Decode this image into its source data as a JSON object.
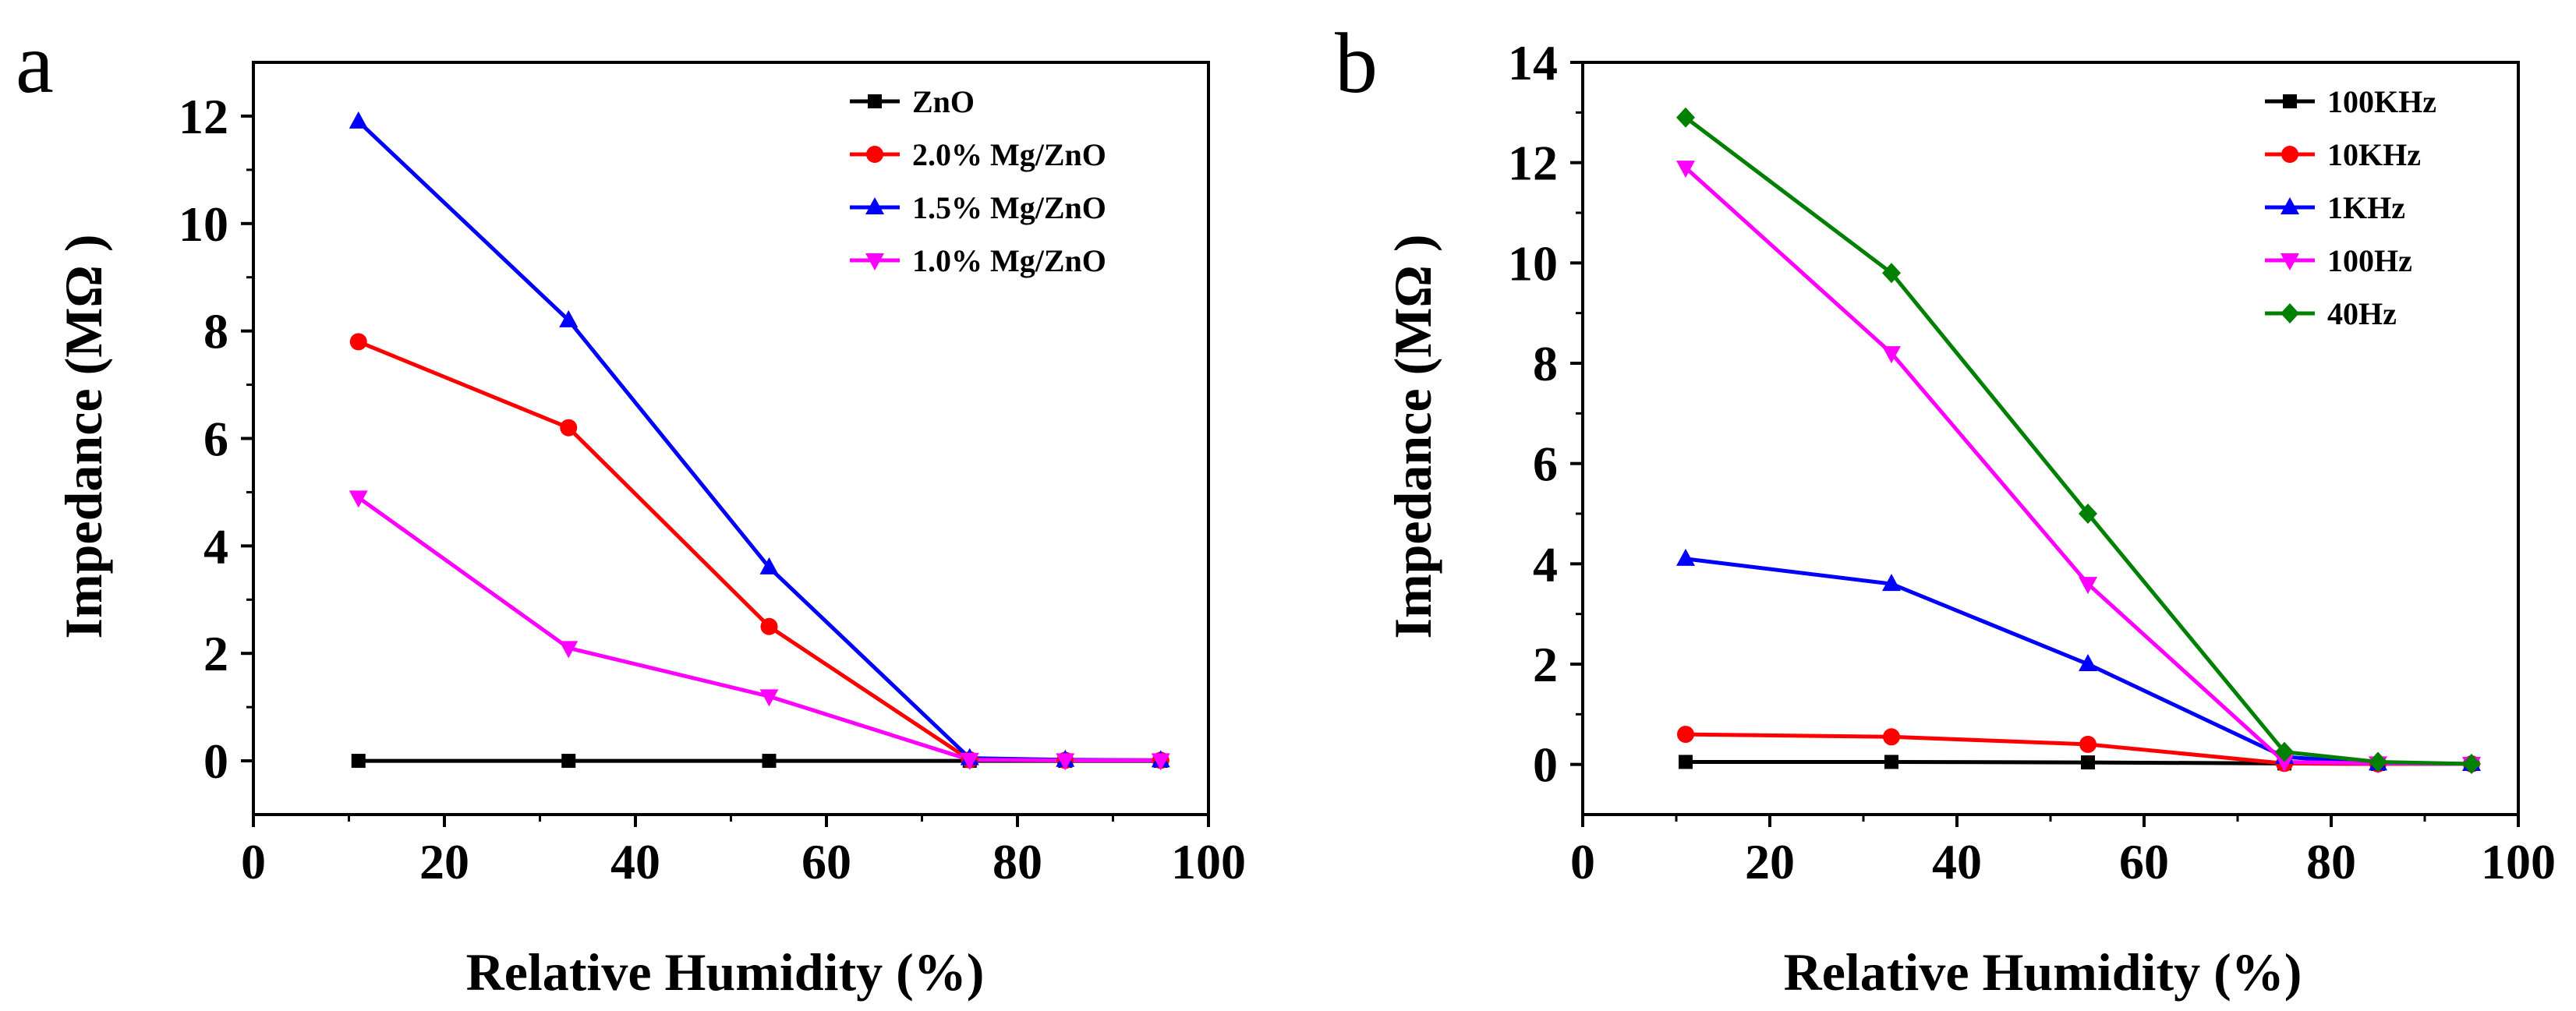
{
  "chart_data": [
    {
      "type": "line",
      "panel_label": "a",
      "xlabel": "Relative Humidity (%)",
      "ylabel": "Impedance (MΩ )",
      "xlim": [
        0,
        100
      ],
      "ylim": [
        -1,
        13
      ],
      "xticks": [
        0,
        20,
        40,
        60,
        80,
        100
      ],
      "yticks": [
        0,
        2,
        4,
        6,
        8,
        10,
        12
      ],
      "grid": false,
      "legend_position": "top-right",
      "x": [
        11,
        33,
        54,
        75,
        85,
        95
      ],
      "series": [
        {
          "name": "ZnO",
          "color": "#000000",
          "marker": "square",
          "values": [
            0.0,
            0.0,
            0.0,
            0.0,
            0.0,
            0.0
          ]
        },
        {
          "name": "2.0% Mg/ZnO",
          "color": "#ff0000",
          "marker": "circle",
          "values": [
            7.8,
            6.2,
            2.5,
            0.02,
            0.01,
            0.01
          ]
        },
        {
          "name": "1.5% Mg/ZnO",
          "color": "#0000ff",
          "marker": "triangle-up",
          "values": [
            11.9,
            8.2,
            3.6,
            0.05,
            0.02,
            0.01
          ]
        },
        {
          "name": "1.0% Mg/ZnO",
          "color": "#ff00ff",
          "marker": "triangle-down",
          "values": [
            4.9,
            2.1,
            1.2,
            0.02,
            0.01,
            0.01
          ]
        }
      ]
    },
    {
      "type": "line",
      "panel_label": "b",
      "xlabel": "Relative Humidity (%)",
      "ylabel": "Impedance (MΩ )",
      "xlim": [
        0,
        100
      ],
      "ylim": [
        -1,
        14
      ],
      "xticks": [
        0,
        20,
        40,
        60,
        80,
        100
      ],
      "yticks": [
        0,
        2,
        4,
        6,
        8,
        10,
        12,
        14
      ],
      "grid": false,
      "legend_position": "top-right",
      "x": [
        11,
        33,
        54,
        75,
        85,
        95
      ],
      "series": [
        {
          "name": "100KHz",
          "color": "#000000",
          "marker": "square",
          "values": [
            0.05,
            0.05,
            0.04,
            0.02,
            0.01,
            0.01
          ]
        },
        {
          "name": "10KHz",
          "color": "#ff0000",
          "marker": "circle",
          "values": [
            0.6,
            0.55,
            0.4,
            0.02,
            0.01,
            0.01
          ]
        },
        {
          "name": "1KHz",
          "color": "#0000ff",
          "marker": "triangle-up",
          "values": [
            4.1,
            3.6,
            2.0,
            0.15,
            0.02,
            0.01
          ]
        },
        {
          "name": "100Hz",
          "color": "#ff00ff",
          "marker": "triangle-down",
          "values": [
            11.9,
            8.2,
            3.6,
            0.05,
            0.02,
            0.01
          ]
        },
        {
          "name": "40Hz",
          "color": "#008000",
          "marker": "diamond",
          "values": [
            12.9,
            9.8,
            5.0,
            0.25,
            0.05,
            0.01
          ]
        }
      ]
    }
  ]
}
